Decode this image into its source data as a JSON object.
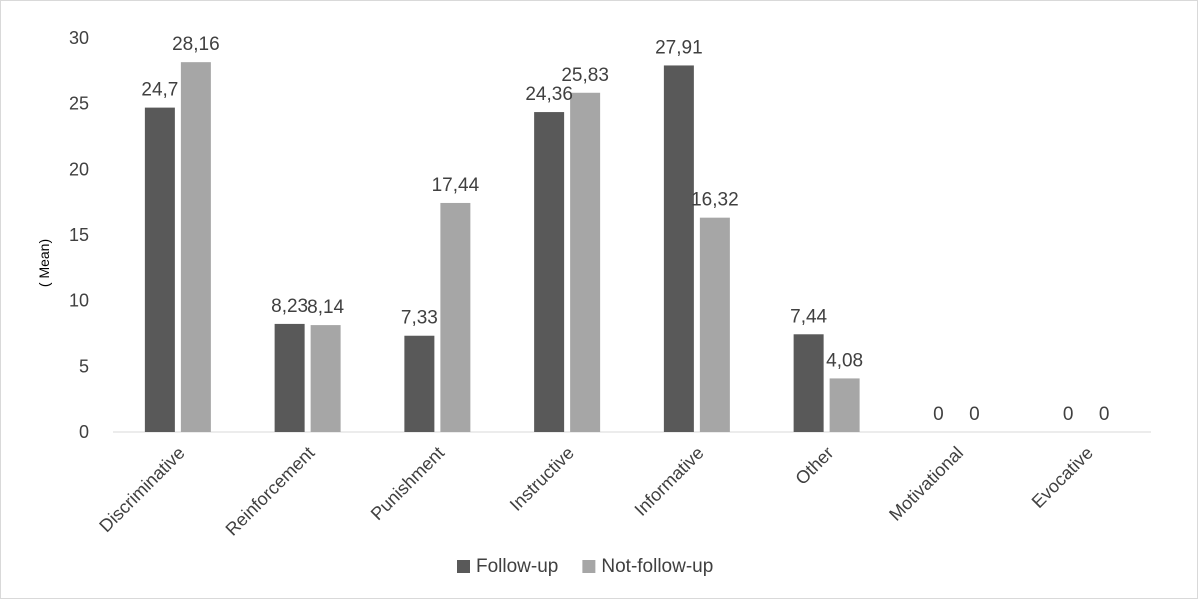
{
  "chart_data": {
    "type": "bar",
    "title": "",
    "xlabel": "",
    "ylabel": "( Mean)",
    "ylim": [
      0,
      30
    ],
    "yticks": [
      0,
      5,
      10,
      15,
      20,
      25,
      30
    ],
    "grid": false,
    "legend_position": "bottom",
    "categories": [
      "Discriminative",
      "Reinforcement",
      "Punishment",
      "Instructive",
      "Informative",
      "Other",
      "Motivational",
      "Evocative"
    ],
    "series": [
      {
        "name": "Follow-up",
        "color": "#595959",
        "values": [
          24.7,
          8.23,
          7.33,
          24.36,
          27.91,
          7.44,
          0,
          0
        ],
        "labels": [
          "24,7",
          "8,23",
          "7,33",
          "24,36",
          "27,91",
          "7,44",
          "0",
          "0"
        ]
      },
      {
        "name": "Not-follow-up",
        "color": "#a6a6a6",
        "values": [
          28.16,
          8.14,
          17.44,
          25.83,
          16.32,
          4.08,
          0,
          0
        ],
        "labels": [
          "28,16",
          "8,14",
          "17,44",
          "25,83",
          "16,32",
          "4,08",
          "0",
          "0"
        ]
      }
    ]
  }
}
